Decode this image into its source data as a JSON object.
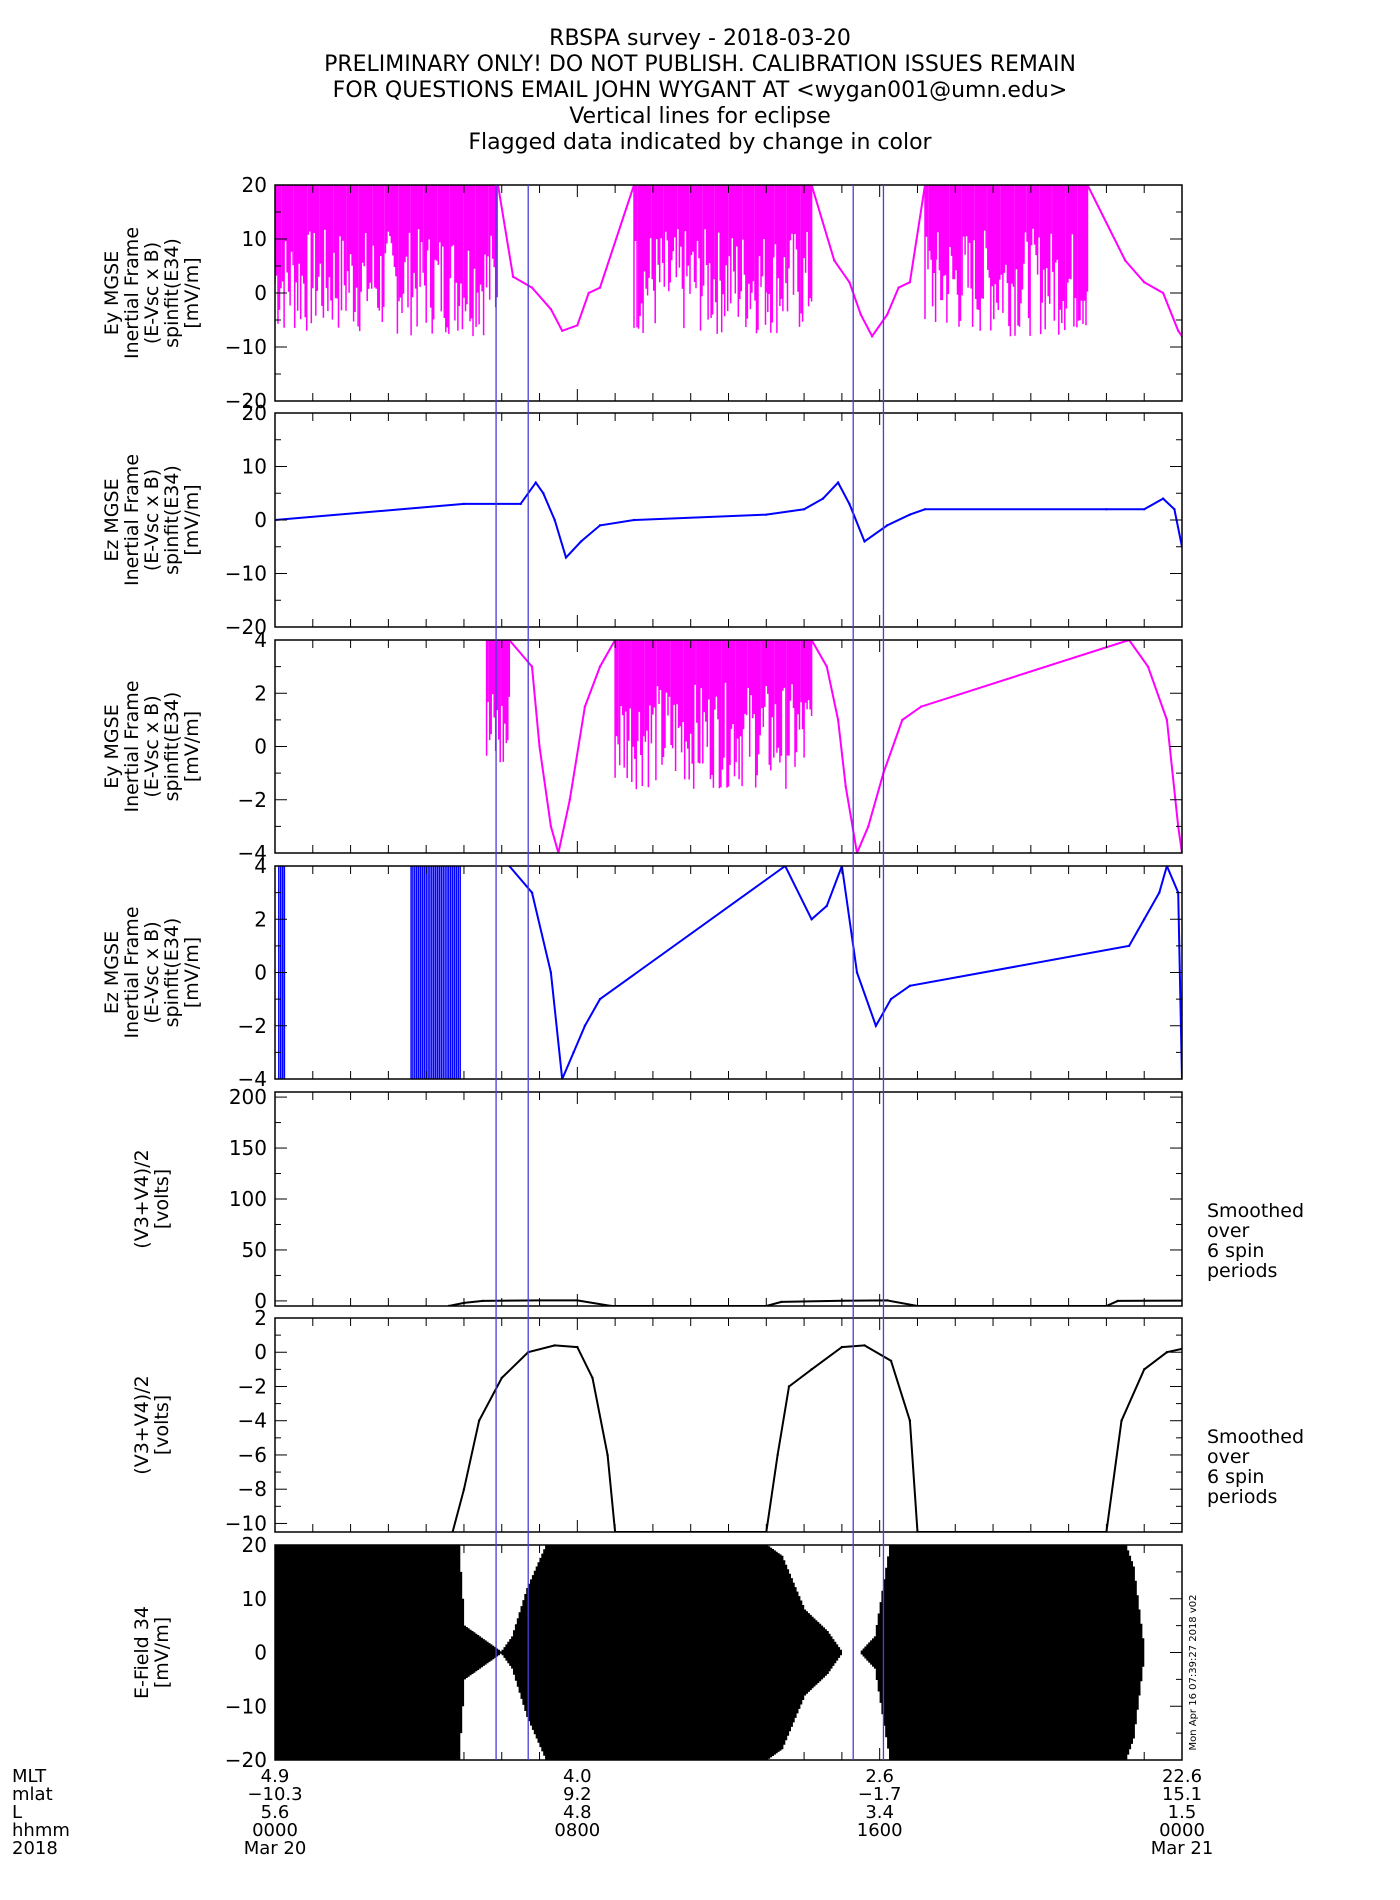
{
  "header": {
    "lines": [
      "RBSPA survey - 2018-03-20",
      "PRELIMINARY ONLY! DO NOT PUBLISH. CALIBRATION ISSUES REMAIN",
      "FOR QUESTIONS EMAIL JOHN WYGANT AT <wygan001@umn.edu>",
      "Vertical lines for eclipse",
      "Flagged data indicated by change in color"
    ]
  },
  "colors": {
    "magenta": "#ff00ff",
    "blue": "#0000ff",
    "black": "#000000",
    "eclipse_line": "#4a3cd6"
  },
  "chart_data": [
    {
      "type": "line",
      "ylabel_lines": [
        "Ey MGSE",
        "Inertial Frame",
        "(E-Vsc x B)",
        "spinfit(E34)",
        "[mV/m]"
      ],
      "ylim": [
        -20,
        20
      ],
      "yticks": [
        20,
        10,
        0,
        -10,
        -20
      ],
      "series_color": "magenta",
      "x_hours": [
        0,
        5.9,
        6.3,
        6.8,
        7.3,
        7.6,
        8.0,
        8.3,
        8.6,
        9.5,
        13.0,
        14.2,
        14.8,
        15.2,
        15.5,
        15.8,
        16.2,
        16.5,
        16.8,
        17.2,
        17.5,
        21.5,
        22.5,
        23.0,
        23.5,
        23.9,
        24.0
      ],
      "values": [
        20,
        20,
        3,
        1,
        -3,
        -7,
        -6,
        0,
        1,
        20,
        20,
        20,
        6,
        2,
        -4,
        -8,
        -4,
        1,
        2,
        20,
        20,
        20,
        6,
        2,
        0,
        -7,
        -8
      ]
    },
    {
      "type": "line",
      "ylabel_lines": [
        "Ez MGSE",
        "Inertial Frame",
        "(E-Vsc x B)",
        "spinfit(E34)",
        "[mV/m]"
      ],
      "ylim": [
        -20,
        20
      ],
      "yticks": [
        20,
        10,
        0,
        -10,
        -20
      ],
      "series_color": "blue",
      "x_hours": [
        0,
        5.0,
        6.5,
        6.9,
        7.1,
        7.4,
        7.7,
        8.1,
        8.6,
        9.5,
        13.0,
        14.0,
        14.5,
        14.9,
        15.2,
        15.6,
        16.2,
        16.8,
        17.2,
        22.0,
        23.0,
        23.5,
        23.8,
        24.0
      ],
      "values": [
        0,
        3,
        3,
        7,
        5,
        0,
        -7,
        -4,
        -1,
        0,
        1,
        2,
        4,
        7,
        3,
        -4,
        -1,
        1,
        2,
        2,
        2,
        4,
        2,
        -5
      ]
    },
    {
      "type": "line",
      "ylabel_lines": [
        "Ey MGSE",
        "Inertial Frame",
        "(E-Vsc x B)",
        "spinfit(E34)",
        "[mV/m]"
      ],
      "ylim": [
        -4,
        4
      ],
      "yticks": [
        4,
        2,
        0,
        -2,
        -4
      ],
      "series_color": "magenta",
      "x_hours": [
        5.6,
        6.2,
        6.8,
        7.0,
        7.3,
        7.5,
        7.8,
        8.2,
        8.6,
        9.0,
        14.2,
        14.6,
        14.9,
        15.1,
        15.4,
        15.7,
        16.1,
        16.6,
        17.1,
        22.6,
        23.1,
        23.6,
        23.9,
        24.0
      ],
      "values": [
        4,
        4,
        3,
        0,
        -3,
        -4.3,
        -2,
        1.5,
        3,
        4,
        4,
        3,
        1,
        -1.5,
        -4.3,
        -3,
        -1,
        1,
        1.5,
        4,
        3,
        1,
        -3,
        -4.3
      ]
    },
    {
      "type": "line",
      "ylabel_lines": [
        "Ez MGSE",
        "Inertial Frame",
        "(E-Vsc x B)",
        "spinfit(E34)",
        "[mV/m]"
      ],
      "ylim": [
        -4,
        4
      ],
      "yticks": [
        4,
        2,
        0,
        -2,
        -4
      ],
      "series_color": "blue",
      "x_hours": [
        6.2,
        6.8,
        7.3,
        7.6,
        7.9,
        8.2,
        8.6,
        13.5,
        14.2,
        14.6,
        15.0,
        15.4,
        15.9,
        16.3,
        16.8,
        22.6,
        23.0,
        23.4,
        23.6,
        23.9,
        24.0
      ],
      "values": [
        4,
        3,
        0,
        -4.3,
        -3,
        -2,
        -1,
        4,
        2,
        2.5,
        4,
        0,
        -2,
        -1,
        -0.5,
        1,
        2,
        3,
        4,
        3,
        -4
      ],
      "noise_fill": [
        {
          "from": 0.1,
          "to": 0.25,
          "note": "vertical bursts"
        },
        {
          "from": 3.6,
          "to": 4.9,
          "note": "vertical bursts"
        }
      ]
    },
    {
      "type": "line",
      "ylabel_lines": [
        "(V3+V4)/2",
        "[volts]"
      ],
      "ylim": [
        -5,
        205
      ],
      "yticks": [
        200,
        150,
        100,
        50,
        0
      ],
      "series_color": "black",
      "side_note": [
        "Smoothed",
        "over",
        "6 spin",
        "periods"
      ],
      "x_hours": [
        4.6,
        5.0,
        5.5,
        7.0,
        8.0,
        8.9,
        13.0,
        13.4,
        15.0,
        16.2,
        17.0,
        22.0,
        22.3,
        24.0
      ],
      "values": [
        -5,
        -2,
        0,
        0.5,
        0.5,
        -5,
        -5,
        -1,
        0.2,
        0.5,
        -5,
        -5,
        0,
        0.3
      ]
    },
    {
      "type": "line",
      "ylabel_lines": [
        "(V3+V4)/2",
        "[volts]"
      ],
      "ylim": [
        -10.5,
        2
      ],
      "yticks": [
        2,
        0,
        -2,
        -4,
        -6,
        -8,
        -10
      ],
      "series_color": "black",
      "side_note": [
        "Smoothed",
        "over",
        "6 spin",
        "periods"
      ],
      "x_hours": [
        4.7,
        5.0,
        5.4,
        6.0,
        6.7,
        7.4,
        8.0,
        8.4,
        8.8,
        9.0,
        13.0,
        13.3,
        13.6,
        14.2,
        15.0,
        15.6,
        16.3,
        16.8,
        17.0,
        22.0,
        22.4,
        23.0,
        23.6,
        24.0
      ],
      "values": [
        -10.5,
        -8,
        -4,
        -1.5,
        0,
        0.4,
        0.3,
        -1.5,
        -6,
        -10.5,
        -10.5,
        -6,
        -2,
        -1,
        0.3,
        0.4,
        -0.5,
        -4,
        -10.5,
        -10.5,
        -4,
        -1,
        0,
        0.2
      ]
    },
    {
      "type": "area",
      "ylabel_lines": [
        "E-Field 34",
        "[mV/m]"
      ],
      "ylim": [
        -20,
        20
      ],
      "yticks": [
        20,
        10,
        0,
        -10,
        -20
      ],
      "series_color": "black",
      "envelope_x_hours": [
        0,
        4.7,
        4.85,
        5.0,
        6.0,
        6.3,
        6.7,
        7.2,
        7.5,
        8.0,
        8.3,
        13.0,
        13.4,
        14.0,
        14.6,
        15.0,
        15.5,
        15.9,
        16.3,
        16.6,
        22.5,
        22.7,
        23.0,
        24.0
      ],
      "envelope_amp": [
        20,
        20,
        20,
        5,
        0,
        3,
        12,
        20,
        20,
        20,
        20,
        20,
        18,
        8,
        4,
        0,
        0,
        3,
        20,
        20,
        20,
        16,
        0,
        0
      ],
      "stamp": "Mon Apr 16 07:39:27 2018 v02"
    }
  ],
  "eclipse_lines_hours": [
    5.85,
    6.7,
    15.3,
    16.1
  ],
  "time_axis": {
    "row_labels": [
      "MLT",
      "mlat",
      "L",
      "hhmm",
      "2018"
    ],
    "columns": [
      {
        "hour": 0,
        "values": [
          "4.9",
          "-10.3",
          "5.6",
          "0000",
          "Mar 20"
        ]
      },
      {
        "hour": 8,
        "values": [
          "4.0",
          "9.2",
          "4.8",
          "0800",
          ""
        ]
      },
      {
        "hour": 16,
        "values": [
          "2.6",
          "-1.7",
          "3.4",
          "1600",
          ""
        ]
      },
      {
        "hour": 24,
        "values": [
          "22.6",
          "15.1",
          "1.5",
          "0000",
          "Mar 21"
        ]
      }
    ]
  }
}
